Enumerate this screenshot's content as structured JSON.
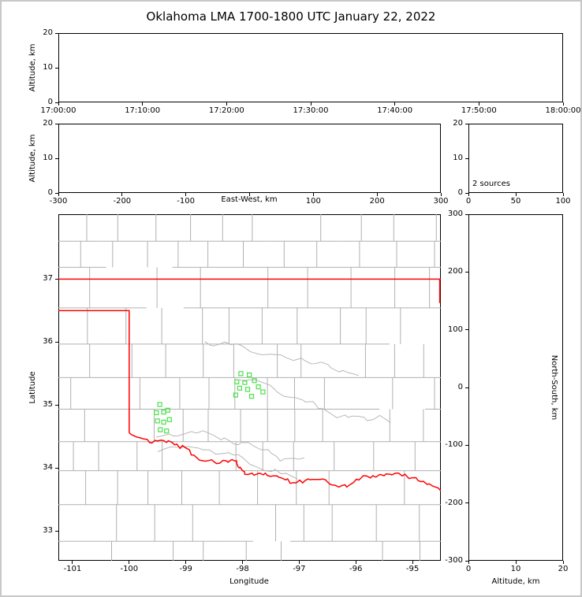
{
  "title": "Oklahoma LMA 1700-1800 UTC January 22, 2022",
  "chart_data": {
    "type": "scatter",
    "description": "Lightning Mapping Array multi-panel plot: time-altitude, east-west-altitude, altitude histogram, plan-view map with station markers, north-south-altitude",
    "panels": {
      "time_altitude": {
        "ylabel": "Altitude, km",
        "xtick_labels": [
          "17:00:00",
          "17:10:00",
          "17:20:00",
          "17:30:00",
          "17:40:00",
          "17:50:00",
          "18:00:00"
        ],
        "ytick_labels": [
          "20",
          "10",
          "0"
        ],
        "yticks": [
          20,
          10,
          0
        ],
        "ylim": [
          0,
          20
        ],
        "points": []
      },
      "ew_altitude": {
        "xlabel": "East-West, km",
        "ylabel": "Altitude, km",
        "xticks": [
          -300,
          -200,
          -100,
          0,
          100,
          200,
          300
        ],
        "xtick_labels": [
          "-300",
          "-200",
          "-100",
          "",
          "100",
          "200",
          "300"
        ],
        "ytick_labels": [
          "20",
          "10",
          "0"
        ],
        "yticks": [
          20,
          10,
          0
        ],
        "xlim": [
          -300,
          300
        ],
        "ylim": [
          0,
          20
        ],
        "points": []
      },
      "altitude_histogram": {
        "annotation": "2 sources",
        "xticks": [
          0,
          50,
          100
        ],
        "xtick_labels": [
          "0",
          "50",
          "100"
        ],
        "ytick_labels": [
          "20",
          "10",
          "0"
        ],
        "yticks": [
          20,
          10,
          0
        ],
        "xlim": [
          0,
          100
        ],
        "ylim": [
          0,
          20
        ]
      },
      "map": {
        "xlabel": "Longitude",
        "ylabel": "Latitude",
        "xticks": [
          -101,
          -100,
          -99,
          -98,
          -97,
          -96,
          -95
        ],
        "xtick_labels": [
          "-101",
          "-100",
          "-99",
          "-98",
          "-97",
          "-96",
          "-95"
        ],
        "yticks": [
          37,
          36,
          35,
          34,
          33
        ],
        "ytick_labels": [
          "37",
          "36",
          "35",
          "34",
          "33"
        ],
        "lon_range": [
          -101.25,
          -94.5
        ],
        "lat_range": [
          32.53,
          38.03
        ],
        "marker_color": "#4ae04a",
        "border_color": "#ff0000",
        "county_color": "#b0b0b0",
        "stations": [
          [
            -98.03,
            35.5
          ],
          [
            -97.88,
            35.48
          ],
          [
            -98.1,
            35.37
          ],
          [
            -97.96,
            35.36
          ],
          [
            -97.79,
            35.39
          ],
          [
            -98.05,
            35.27
          ],
          [
            -97.91,
            35.25
          ],
          [
            -98.12,
            35.16
          ],
          [
            -97.72,
            35.29
          ],
          [
            -97.84,
            35.14
          ],
          [
            -97.64,
            35.21
          ],
          [
            -99.46,
            35.01
          ],
          [
            -99.52,
            34.88
          ],
          [
            -99.39,
            34.89
          ],
          [
            -99.32,
            34.92
          ],
          [
            -99.5,
            34.75
          ],
          [
            -99.39,
            34.73
          ],
          [
            -99.29,
            34.77
          ],
          [
            -99.45,
            34.61
          ],
          [
            -99.34,
            34.59
          ]
        ],
        "state_lines": [
          [
            [
              -101.25,
              37.0
            ],
            [
              -94.5,
              37.0
            ]
          ],
          [
            [
              -101.25,
              36.5
            ],
            [
              -100.0,
              36.5
            ],
            [
              -100.0,
              34.56
            ]
          ],
          [
            [
              -94.52,
              37.0
            ],
            [
              -94.52,
              36.62
            ]
          ]
        ],
        "red_river": [
          [
            -100.0,
            34.56
          ],
          [
            -99.8,
            34.48
          ],
          [
            -99.6,
            34.4
          ],
          [
            -99.4,
            34.44
          ],
          [
            -99.2,
            34.37
          ],
          [
            -99.0,
            34.32
          ],
          [
            -98.8,
            34.16
          ],
          [
            -98.6,
            34.12
          ],
          [
            -98.4,
            34.08
          ],
          [
            -98.2,
            34.13
          ],
          [
            -98.1,
            34.07
          ],
          [
            -98.0,
            33.96
          ],
          [
            -97.9,
            33.9
          ],
          [
            -97.7,
            33.92
          ],
          [
            -97.5,
            33.87
          ],
          [
            -97.3,
            33.84
          ],
          [
            -97.1,
            33.77
          ],
          [
            -96.9,
            33.8
          ],
          [
            -96.7,
            33.82
          ],
          [
            -96.5,
            33.78
          ],
          [
            -96.3,
            33.7
          ],
          [
            -96.1,
            33.74
          ],
          [
            -95.9,
            33.85
          ],
          [
            -95.7,
            33.88
          ],
          [
            -95.5,
            33.88
          ],
          [
            -95.3,
            33.92
          ],
          [
            -95.1,
            33.87
          ],
          [
            -94.9,
            33.8
          ],
          [
            -94.7,
            33.75
          ],
          [
            -94.5,
            33.64
          ]
        ]
      },
      "ns_altitude": {
        "xlabel": "Altitude, km",
        "ylabel": "North-South, km",
        "xticks": [
          0,
          10,
          20
        ],
        "xtick_labels": [
          "0",
          "10",
          "20"
        ],
        "yticks": [
          300,
          200,
          100,
          0,
          -100,
          -200,
          -300
        ],
        "ytick_labels": [
          "300",
          "200",
          "100",
          "0",
          "-100",
          "-200",
          "-300"
        ],
        "xlim": [
          0,
          20
        ],
        "ylim": [
          -300,
          300
        ],
        "points": []
      }
    }
  }
}
